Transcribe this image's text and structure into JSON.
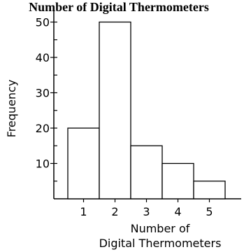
{
  "chart_data": {
    "type": "bar",
    "title": "Number of Digital Thermometers",
    "xlabel_lines": [
      "Number of",
      "Digital Thermometers"
    ],
    "ylabel": "Frequency",
    "categories": [
      "1",
      "2",
      "3",
      "4",
      "5"
    ],
    "values": [
      20,
      50,
      15,
      10,
      5
    ],
    "yticks": [
      "10",
      "20",
      "30",
      "40",
      "50"
    ],
    "ylim": [
      0,
      54
    ],
    "grid": false,
    "bar_fill": "#ffffff",
    "bar_stroke": "#000000"
  }
}
